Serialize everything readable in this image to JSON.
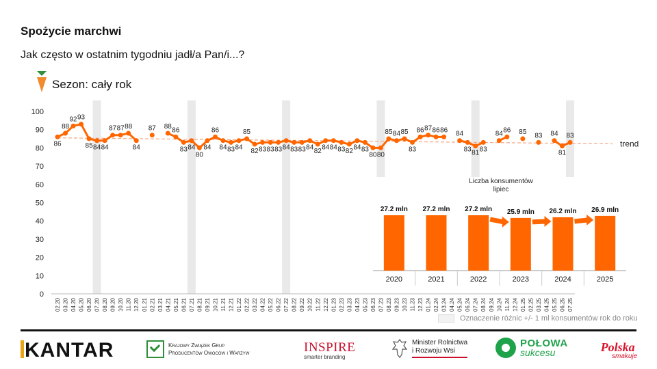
{
  "header": {
    "title": "Spożycie marchwi",
    "question": "Jak często w ostatnim tygodniu jadł/a Pan/i...?",
    "season": "Sezon: cały rok"
  },
  "legend_note": "Oznaczenie różnic +/- 1 ml konsumentów rok do roku",
  "trend_label": "trend",
  "logos": {
    "kantar": "KANTAR",
    "kzg_line1": "Krajowy Związek Grup",
    "kzg_line2": "Producentów Owoców i Warzyw",
    "inspire": "INSPIRE",
    "inspire_sub": "smarter branding",
    "minister_line1": "Minister Rolnictwa",
    "minister_line2": "i Rozwoju Wsi",
    "polowa_1": "POŁOWA",
    "polowa_2": "sukcesu",
    "polska_1": "Polska",
    "polska_2": "smakuje"
  },
  "colors": {
    "accent": "#ff6600",
    "trend": "#f4a582",
    "band": "#e9e9e9",
    "bar": "#ff6600"
  },
  "chart_data": [
    {
      "type": "line",
      "ylim": [
        0,
        100
      ],
      "yticks": [
        0,
        10,
        20,
        30,
        40,
        50,
        60,
        70,
        80,
        90,
        100
      ],
      "x": [
        "02.20",
        "03.20",
        "04.20",
        "05.20",
        "06.20",
        "07.20",
        "08.20",
        "09.20",
        "10.20",
        "11.20",
        "12.20",
        "01.21",
        "02.21",
        "03.21",
        "04.21",
        "05.21",
        "06.21",
        "07.21",
        "08.21",
        "09.21",
        "10.21",
        "11.21",
        "12.21",
        "01.22",
        "02.22",
        "03.22",
        "04.22",
        "05.22",
        "06.22",
        "07.22",
        "08.22",
        "09.22",
        "10.22",
        "11.22",
        "12.22",
        "01.23",
        "02.23",
        "03.23",
        "04.23",
        "05.23",
        "06.23",
        "07.23",
        "08.23",
        "09.23",
        "10.23",
        "11.23",
        "12.23",
        "01.24",
        "02.24",
        "03.24",
        "04.24",
        "05.24",
        "06.24",
        "07.24",
        "08.24",
        "09.24",
        "10.24",
        "11.24",
        "12.24",
        "01.25",
        "02.25",
        "03.25",
        "04.25",
        "05.25",
        "06.25",
        "07.25"
      ],
      "values": [
        86,
        88,
        92,
        93,
        85,
        84,
        84,
        87,
        87,
        88,
        84,
        null,
        87,
        null,
        88,
        86,
        83,
        84,
        80,
        84,
        86,
        84,
        83,
        84,
        85,
        82,
        83,
        83,
        83,
        84,
        83,
        83,
        84,
        82,
        84,
        84,
        83,
        82,
        84,
        83,
        80,
        80,
        85,
        84,
        85,
        83,
        86,
        87,
        86,
        86,
        null,
        84,
        83,
        81,
        83,
        null,
        84,
        86,
        null,
        85,
        null,
        83,
        null,
        84,
        81,
        83
      ],
      "labels": [
        "86",
        "88",
        "92",
        "93",
        "85",
        "84",
        "84",
        "87",
        "87",
        "88",
        "84",
        "",
        "87",
        "",
        "88",
        "86",
        "83",
        "84",
        "80",
        "84",
        "86",
        "84",
        "83",
        "84",
        "85",
        "82",
        "83",
        "83",
        "83",
        "84",
        "83",
        "83",
        "84",
        "82",
        "84",
        "84",
        "83",
        "82",
        "84",
        "83",
        "80",
        "80",
        "85",
        "84",
        "85",
        "83",
        "86",
        "87",
        "86",
        "86",
        "",
        "84",
        "83",
        "81",
        "83",
        "",
        "84",
        "86",
        "",
        "85",
        "",
        "83",
        "",
        "84",
        "81",
        "83"
      ],
      "label_side": [
        "below",
        "above",
        "above",
        "above",
        "below",
        "below",
        "below",
        "above",
        "above",
        "above",
        "below",
        "",
        "above",
        "",
        "above",
        "above",
        "below",
        "below",
        "below",
        "below",
        "above",
        "below",
        "below",
        "below",
        "above",
        "below",
        "below",
        "below",
        "below",
        "below",
        "below",
        "below",
        "below",
        "below",
        "below",
        "below",
        "below",
        "below",
        "below",
        "below",
        "below",
        "below",
        "above",
        "above",
        "above",
        "below",
        "above",
        "above",
        "above",
        "above",
        "",
        "above",
        "below",
        "below",
        "below",
        "",
        "above",
        "above",
        "",
        "above",
        "",
        "above",
        "",
        "above",
        "below",
        "above"
      ],
      "trend": {
        "start": 85.5,
        "end": 82.2
      },
      "highlight_bands": [
        "07.20",
        "07.21",
        "07.22",
        "07.23",
        "07.24",
        "07.25"
      ]
    },
    {
      "type": "bar",
      "title": "Liczba konsumentów lipiec",
      "categories": [
        "2020",
        "2021",
        "2022",
        "2023",
        "2024",
        "2025"
      ],
      "values": [
        27.2,
        27.2,
        27.2,
        25.9,
        26.2,
        26.9
      ],
      "value_labels": [
        "27.2 mln",
        "27.2 mln",
        "27.2 mln",
        "25.9 mln",
        "26.2 mln",
        "26.9 mln"
      ],
      "arrows_before": [
        "2023",
        "2024",
        "2025"
      ]
    }
  ]
}
